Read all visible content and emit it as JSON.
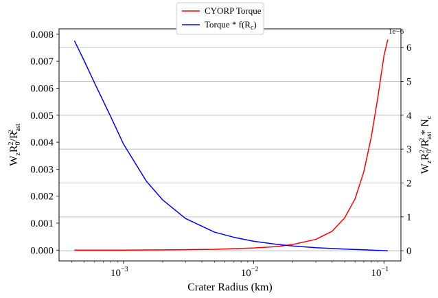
{
  "chart_data": {
    "type": "line",
    "x_scale": "log",
    "xlabel": "Crater Radius (km)",
    "xlim": [
      0.00032,
      0.135
    ],
    "x_ticks": [
      {
        "value": 0.001,
        "base": "10",
        "exp": "−3"
      },
      {
        "value": 0.01,
        "base": "10",
        "exp": "−2"
      },
      {
        "value": 0.1,
        "base": "10",
        "exp": "−1"
      }
    ],
    "ylabel_left": {
      "main": "W",
      "sub1": "z",
      "mid": "R",
      "sub2": "0",
      "sup2": "2",
      "rest": "/R",
      "sub3": "ast",
      "sup3": "2"
    },
    "ylabel_right": {
      "main": "W",
      "sub1": "z",
      "mid": "R",
      "sub2": "0",
      "sup2": "2",
      "rest": "/R",
      "sub3": "ast",
      "sup3": "2",
      "tail": " * N",
      "sub4": "c"
    },
    "y_left": {
      "lim": [
        -0.0004,
        0.0082
      ],
      "ticks": [
        0.0,
        0.001,
        0.002,
        0.003,
        0.004,
        0.005,
        0.006,
        0.007,
        0.008
      ],
      "tick_labels": [
        "0.000",
        "0.001",
        "0.002",
        "0.003",
        "0.004",
        "0.005",
        "0.006",
        "0.007",
        "0.008"
      ]
    },
    "y_right": {
      "lim": [
        -3e-07,
        6.55e-06
      ],
      "scale_label": "1e−6",
      "ticks": [
        0,
        1e-06,
        2e-06,
        3e-06,
        4e-06,
        5e-06,
        6e-06
      ],
      "tick_labels": [
        "0",
        "1",
        "2",
        "3",
        "4",
        "5",
        "6"
      ]
    },
    "grid": "horizontal (right axis)",
    "legend_position": "top-center, above plot",
    "series": [
      {
        "name": "CYORP Torque",
        "axis": "left",
        "color": "#ff0000",
        "x": [
          0.00042,
          0.001,
          0.002,
          0.005,
          0.01,
          0.015,
          0.02,
          0.03,
          0.04,
          0.05,
          0.06,
          0.07,
          0.08,
          0.09,
          0.1,
          0.107
        ],
        "y": [
          0.0,
          0.0,
          1e-05,
          3e-05,
          8e-05,
          0.00013,
          0.00021,
          0.0004,
          0.0007,
          0.0012,
          0.0019,
          0.0029,
          0.0042,
          0.0057,
          0.0072,
          0.0078
        ]
      },
      {
        "name": "Torque * f(R",
        "name_sub": "c",
        "name_end": ")",
        "axis": "right",
        "color": "#0000ff",
        "x": [
          0.00042,
          0.0005,
          0.0006,
          0.0008,
          0.001,
          0.0015,
          0.002,
          0.003,
          0.005,
          0.007,
          0.01,
          0.015,
          0.02,
          0.03,
          0.05,
          0.07,
          0.107
        ],
        "y": [
          6.2e-06,
          5.6e-06,
          4.95e-06,
          3.95e-06,
          3.15e-06,
          2.05e-06,
          1.5e-06,
          9.5e-07,
          5.5e-07,
          4e-07,
          2.8e-07,
          1.9e-07,
          1.4e-07,
          9e-08,
          5e-08,
          3e-08,
          0.0
        ]
      }
    ]
  }
}
